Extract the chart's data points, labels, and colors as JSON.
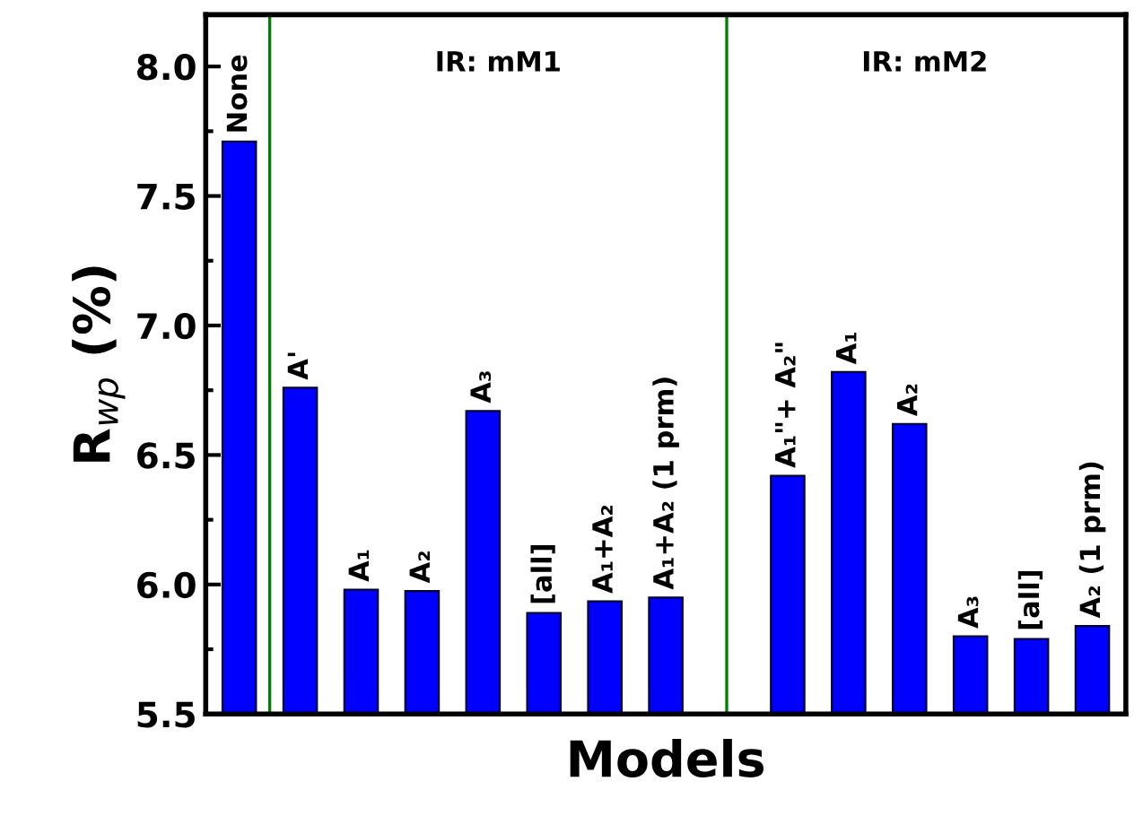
{
  "chart_data": {
    "type": "bar",
    "xlabel": "Models",
    "ylabel": "R$_{wp}$ (%)",
    "categories": [
      "None",
      "A'",
      "A₁",
      "A₂",
      "A₃",
      "[all]",
      "A₁+A₂",
      "A₁+A₂ (1 prm)",
      null,
      "A₁\"+ A₂\"",
      "A₁",
      "A₂",
      "A₃",
      "[all]",
      "A₂ (1 prm)"
    ],
    "values": [
      7.71,
      6.76,
      5.98,
      5.975,
      6.67,
      5.89,
      5.935,
      5.95,
      null,
      6.42,
      6.82,
      6.62,
      5.8,
      5.79,
      5.84
    ],
    "color": "#0000ff",
    "ylim": [
      5.5,
      8.2
    ],
    "yticks": [
      {
        "value": 5.5,
        "label": "5.5"
      },
      {
        "value": 6.0,
        "label": "6.0"
      },
      {
        "value": 6.5,
        "label": "6.5"
      },
      {
        "value": 7.0,
        "label": "7.0"
      },
      {
        "value": 7.5,
        "label": "7.5"
      },
      {
        "value": 8.0,
        "label": "8.0"
      }
    ],
    "annotations": [
      "IR: mM1",
      "IR: mM2"
    ],
    "legend": false
  }
}
